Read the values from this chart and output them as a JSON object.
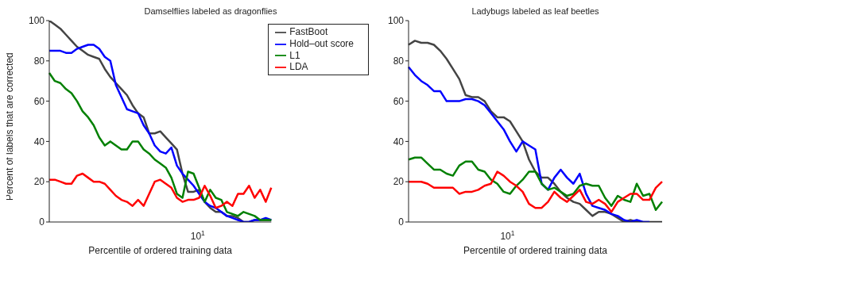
{
  "chart_data": [
    {
      "type": "line",
      "title": "Damselflies labeled as dragonflies",
      "xlabel": "Percentile of ordered training data",
      "ylabel": "Percent of labels that are corrected",
      "annotations": [
        "10$^{1}$"
      ],
      "ylim": [
        0,
        100
      ],
      "yticks": [
        0,
        20,
        40,
        60,
        80,
        100
      ],
      "categories": [
        null,
        null,
        null,
        null,
        null,
        null,
        null,
        null,
        null,
        null,
        null,
        null,
        null,
        null,
        null,
        null,
        null,
        null,
        null,
        null,
        null,
        null,
        null,
        null,
        null,
        null,
        null,
        null,
        null,
        null,
        null,
        null,
        null,
        null,
        null,
        null,
        null,
        null,
        null,
        null,
        null
      ],
      "legend": "top right",
      "line_style": "solid",
      "series": [
        {
          "name": "FastBoot",
          "color": "#444444",
          "values": [
            100,
            98,
            96,
            93,
            90,
            87,
            85,
            83,
            82,
            81,
            76,
            72,
            69,
            66,
            63,
            58,
            54,
            52,
            44,
            44,
            45,
            42,
            39,
            36,
            24,
            15,
            15,
            16,
            10,
            7,
            5,
            5,
            3,
            3,
            2,
            0,
            0,
            1,
            1,
            1,
            1
          ]
        },
        {
          "name": "Hold–out score",
          "color": "#0000ff",
          "values": [
            85,
            85,
            85,
            84,
            84,
            86,
            87,
            88,
            88,
            86,
            82,
            80,
            68,
            62,
            56,
            55,
            54,
            48,
            44,
            38,
            35,
            34,
            37,
            28,
            24,
            21,
            18,
            14,
            10,
            8,
            7,
            5,
            3,
            2,
            1,
            0,
            0,
            1,
            1,
            2,
            1
          ]
        },
        {
          "name": "L1",
          "color": "#008000",
          "values": [
            74,
            70,
            69,
            66,
            64,
            60,
            55,
            52,
            48,
            42,
            38,
            40,
            38,
            36,
            36,
            40,
            40,
            36,
            34,
            31,
            29,
            27,
            22,
            14,
            12,
            25,
            24,
            17,
            10,
            16,
            12,
            11,
            5,
            4,
            3,
            5,
            4,
            3,
            1,
            1,
            1
          ]
        },
        {
          "name": "LDA",
          "color": "#ff0000",
          "values": [
            21,
            21,
            20,
            19,
            19,
            23,
            24,
            22,
            20,
            20,
            19,
            16,
            13,
            11,
            10,
            8,
            11,
            8,
            14,
            20,
            21,
            19,
            17,
            12,
            10,
            11,
            11,
            12,
            18,
            13,
            7,
            8,
            10,
            8,
            14,
            14,
            18,
            12,
            16,
            10,
            17
          ]
        }
      ]
    },
    {
      "type": "line",
      "title": "Ladybugs labeled as leaf beetles",
      "xlabel": "Percentile of ordered training data",
      "annotations": [
        "10$^{1}$"
      ],
      "ylim": [
        0,
        100
      ],
      "yticks": [
        0,
        20,
        40,
        60,
        80,
        100
      ],
      "categories": [
        null,
        null,
        null,
        null,
        null,
        null,
        null,
        null,
        null,
        null,
        null,
        null,
        null,
        null,
        null,
        null,
        null,
        null,
        null,
        null,
        null,
        null,
        null,
        null,
        null,
        null,
        null,
        null,
        null,
        null,
        null,
        null,
        null,
        null,
        null,
        null,
        null,
        null,
        null,
        null,
        null
      ],
      "line_style": "solid",
      "series": [
        {
          "color": "#444444",
          "values": [
            88,
            90,
            89,
            89,
            88,
            85,
            81,
            76,
            71,
            63,
            62,
            62,
            60,
            55,
            52,
            52,
            50,
            45,
            40,
            31,
            25,
            22,
            22,
            19,
            15,
            12,
            10,
            9,
            6,
            3,
            5,
            5,
            4,
            2,
            0,
            1,
            0,
            0,
            0,
            0,
            0
          ]
        },
        {
          "color": "#0000ff",
          "values": [
            77,
            73,
            70,
            68,
            65,
            65,
            60,
            60,
            60,
            61,
            61,
            60,
            58,
            54,
            50,
            46,
            40,
            35,
            40,
            38,
            36,
            19,
            16,
            22,
            26,
            22,
            19,
            24,
            14,
            8,
            7,
            6,
            4,
            3,
            1,
            0,
            1,
            0,
            0,
            null,
            null
          ]
        },
        {
          "color": "#008000",
          "values": [
            31,
            32,
            32,
            29,
            26,
            26,
            24,
            23,
            28,
            30,
            30,
            26,
            25,
            21,
            19,
            15,
            14,
            18,
            21,
            25,
            25,
            19,
            16,
            17,
            15,
            13,
            14,
            18,
            19,
            18,
            18,
            12,
            8,
            13,
            11,
            10,
            19,
            13,
            14,
            6,
            10
          ]
        },
        {
          "color": "#ff0000",
          "values": [
            20,
            20,
            20,
            19,
            17,
            17,
            17,
            17,
            14,
            15,
            15,
            16,
            18,
            19,
            25,
            23,
            20,
            18,
            15,
            9,
            7,
            7,
            10,
            15,
            12,
            10,
            13,
            16,
            10,
            9,
            11,
            9,
            5,
            10,
            12,
            14,
            14,
            11,
            11,
            17,
            20
          ]
        }
      ]
    }
  ]
}
